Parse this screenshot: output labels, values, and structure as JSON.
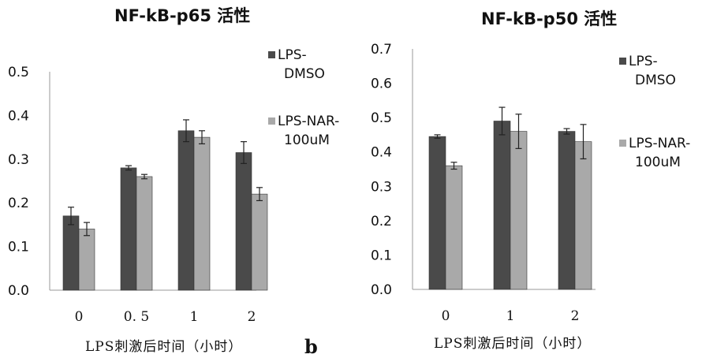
{
  "colors": {
    "dmso": "#4a4a4a",
    "nar": "#a9a9a9",
    "axis": "#999999",
    "error": "#222222"
  },
  "panel_label": "b",
  "chart_data": [
    {
      "type": "bar",
      "title": "NF-kB-p65 活性",
      "xlabel": "LPS刺激后时间（小时）",
      "ylabel": "",
      "categories": [
        "0",
        "0. 5",
        "1",
        "2"
      ],
      "yticks": [
        "0.0",
        "0.1",
        "0.2",
        "0.3",
        "0.4",
        "0.5"
      ],
      "ylim": [
        0,
        0.5
      ],
      "legend_position": "right",
      "series": [
        {
          "name": "LPS-DMSO",
          "legend_lines": [
            "LPS-",
            "DMSO"
          ],
          "values": [
            0.17,
            0.28,
            0.365,
            0.315
          ],
          "errors": [
            0.02,
            0.005,
            0.025,
            0.025
          ]
        },
        {
          "name": "LPS-NAR-100uM",
          "legend_lines": [
            "LPS-NAR-",
            "100uM"
          ],
          "values": [
            0.14,
            0.26,
            0.35,
            0.22
          ],
          "errors": [
            0.015,
            0.005,
            0.015,
            0.015
          ]
        }
      ]
    },
    {
      "type": "bar",
      "title": "NF-kB-p50 活性",
      "xlabel": "LPS刺激后时间（小时）",
      "ylabel": "",
      "categories": [
        "0",
        "1",
        "2"
      ],
      "yticks": [
        "0.0",
        "0.1",
        "0.2",
        "0.3",
        "0.4",
        "0.5",
        "0.6",
        "0.7"
      ],
      "ylim": [
        0,
        0.7
      ],
      "legend_position": "right",
      "series": [
        {
          "name": "LPS-DMSO",
          "legend_lines": [
            "LPS-",
            "DMSO"
          ],
          "values": [
            0.445,
            0.49,
            0.46
          ],
          "errors": [
            0.005,
            0.04,
            0.008
          ]
        },
        {
          "name": "LPS-NAR-100uM",
          "legend_lines": [
            "LPS-NAR-",
            "100uM"
          ],
          "values": [
            0.36,
            0.46,
            0.43
          ],
          "errors": [
            0.01,
            0.05,
            0.05
          ]
        }
      ]
    }
  ]
}
